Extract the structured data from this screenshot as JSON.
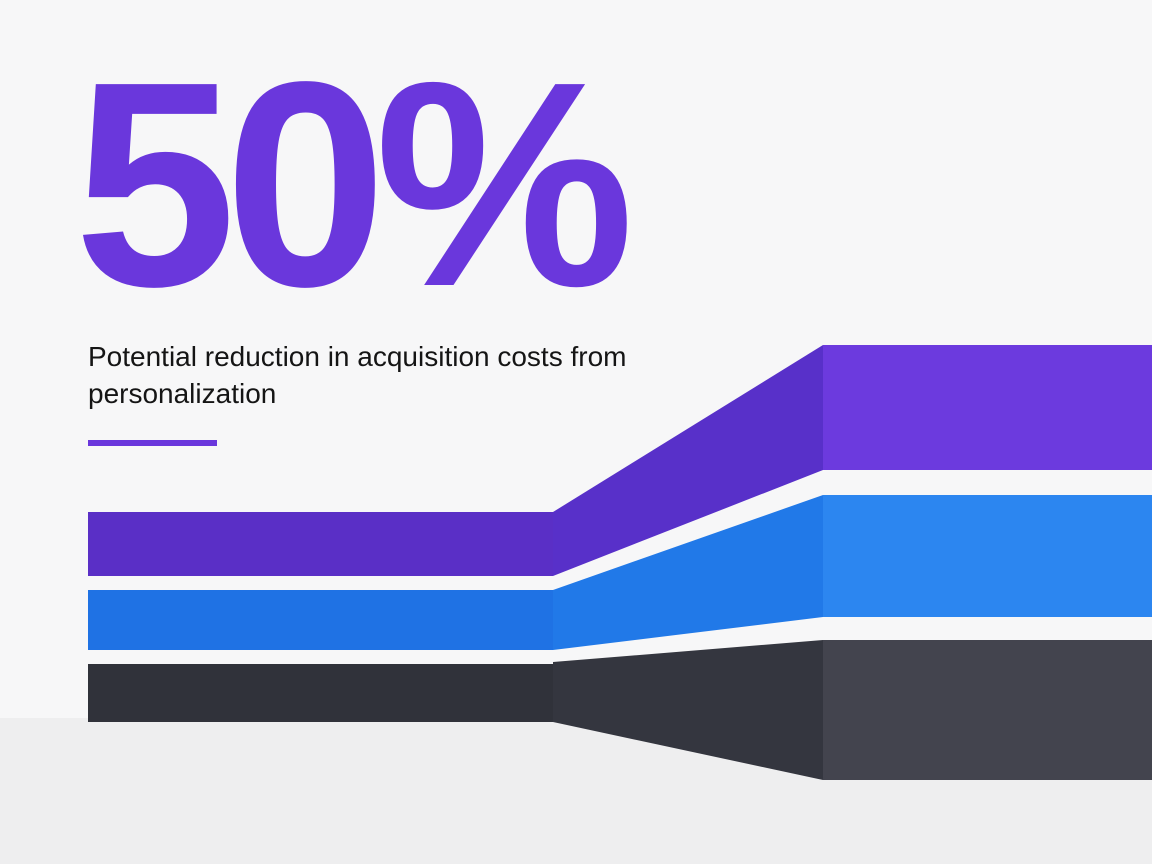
{
  "stat": {
    "value": "50%",
    "caption": "Potential reduction in acquisition costs from personalization"
  }
}
